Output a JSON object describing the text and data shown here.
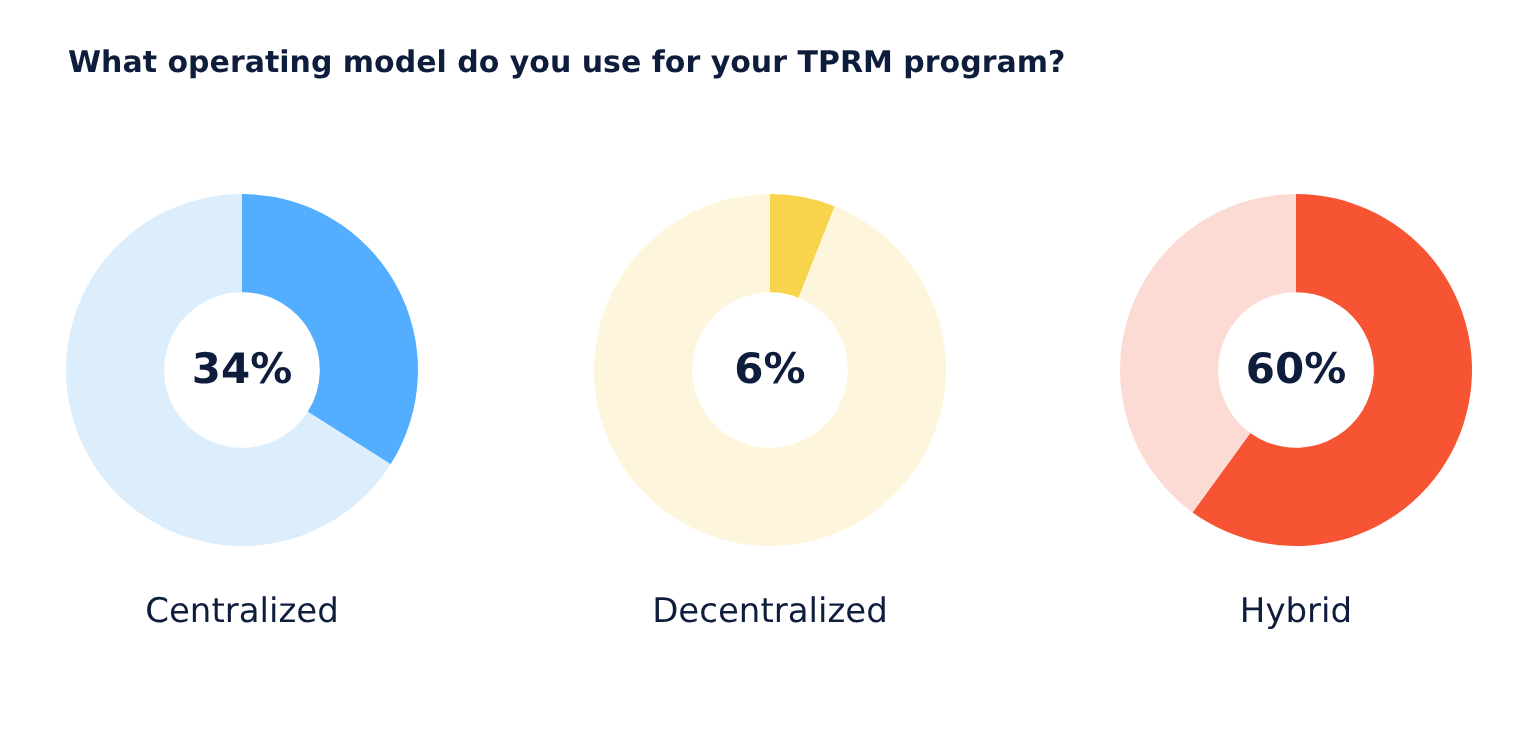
{
  "chart_data": [
    {
      "type": "donut",
      "title": "What operating model do you use for your TPRM program?",
      "xlabel": "Centralized",
      "categories": [
        null,
        null
      ],
      "values": [
        34,
        66
      ],
      "colors": [
        "#54aeff",
        "#dcedfc"
      ],
      "value_labels": [
        "34%",
        null
      ]
    },
    {
      "type": "donut",
      "xlabel": "Decentralized",
      "categories": [
        null,
        null
      ],
      "values": [
        6,
        94
      ],
      "colors": [
        "#f7d44c",
        "#fdf5dc"
      ],
      "value_labels": [
        "6%",
        null
      ]
    },
    {
      "type": "donut",
      "xlabel": "Hybrid",
      "categories": [
        null,
        null
      ],
      "values": [
        60,
        40
      ],
      "colors": [
        "#f75433",
        "#fddbd5"
      ],
      "value_labels": [
        "60%",
        null
      ]
    }
  ]
}
